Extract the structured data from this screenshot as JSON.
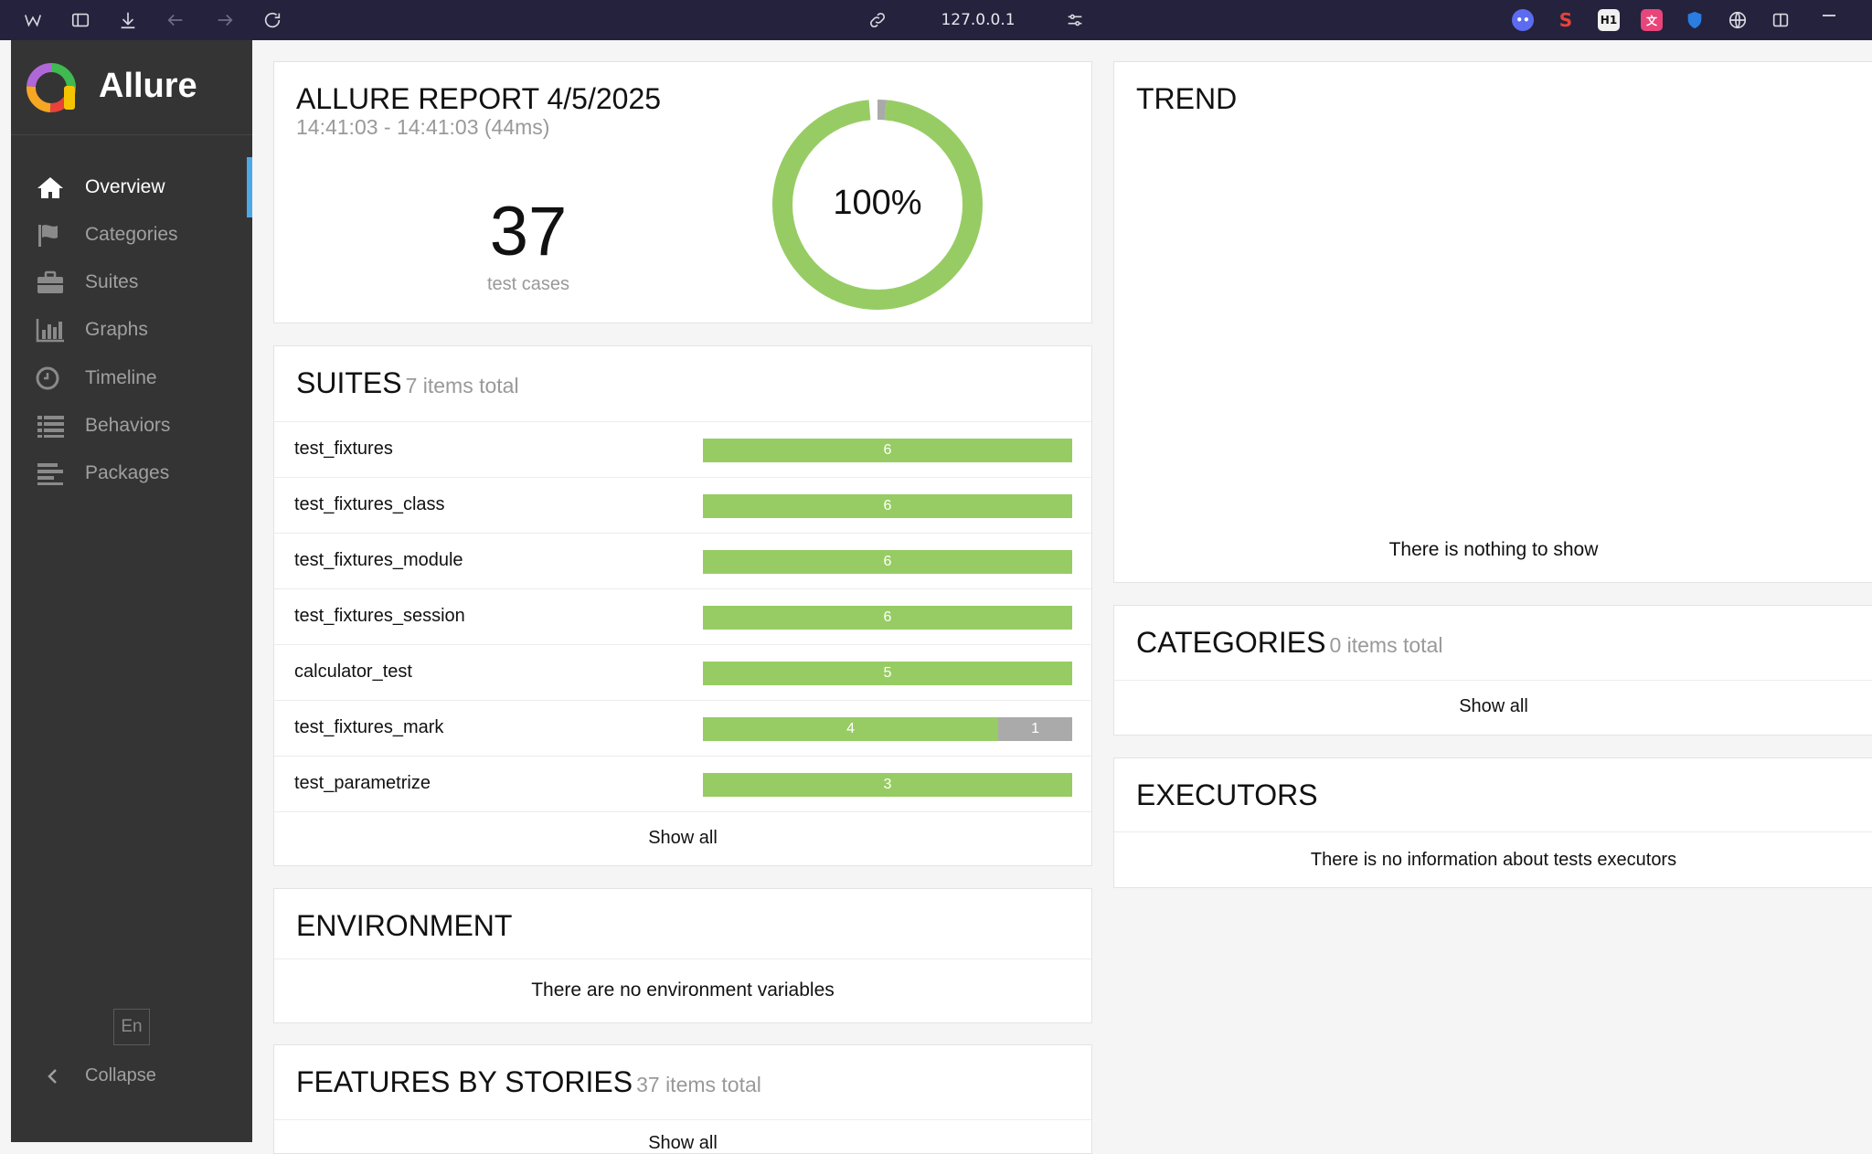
{
  "browser": {
    "url": "127.0.0.1"
  },
  "sidebar": {
    "brand": "Allure",
    "items": [
      {
        "label": "Overview",
        "icon": "home-icon"
      },
      {
        "label": "Categories",
        "icon": "flag-icon"
      },
      {
        "label": "Suites",
        "icon": "briefcase-icon"
      },
      {
        "label": "Graphs",
        "icon": "bar-chart-icon"
      },
      {
        "label": "Timeline",
        "icon": "clock-icon"
      },
      {
        "label": "Behaviors",
        "icon": "list-icon"
      },
      {
        "label": "Packages",
        "icon": "align-left-icon"
      }
    ],
    "language": "En",
    "collapse_label": "Collapse"
  },
  "summary": {
    "title": "ALLURE REPORT 4/5/2025",
    "time": "14:41:03 - 14:41:03 (44ms)",
    "test_count": "37",
    "test_count_label": "test cases",
    "percent_label": "100%",
    "passed_fraction": 0.973,
    "skipped_fraction": 0.027
  },
  "suites": {
    "title": "SUITES",
    "subtitle": "7 items total",
    "rows": [
      {
        "name": "test_fixtures",
        "passed": 6,
        "passed_label": "6",
        "skipped": 0,
        "skipped_label": ""
      },
      {
        "name": "test_fixtures_class",
        "passed": 6,
        "passed_label": "6",
        "skipped": 0,
        "skipped_label": ""
      },
      {
        "name": "test_fixtures_module",
        "passed": 6,
        "passed_label": "6",
        "skipped": 0,
        "skipped_label": ""
      },
      {
        "name": "test_fixtures_session",
        "passed": 6,
        "passed_label": "6",
        "skipped": 0,
        "skipped_label": ""
      },
      {
        "name": "calculator_test",
        "passed": 5,
        "passed_label": "5",
        "skipped": 0,
        "skipped_label": ""
      },
      {
        "name": "test_fixtures_mark",
        "passed": 4,
        "passed_label": "4",
        "skipped": 1,
        "skipped_label": "1"
      },
      {
        "name": "test_parametrize",
        "passed": 3,
        "passed_label": "3",
        "skipped": 0,
        "skipped_label": ""
      }
    ],
    "show_all": "Show all"
  },
  "environment": {
    "title": "ENVIRONMENT",
    "empty": "There are no environment variables"
  },
  "features": {
    "title": "FEATURES BY STORIES",
    "subtitle": "37 items total",
    "show_all": "Show all"
  },
  "trend": {
    "title": "TREND",
    "empty": "There is nothing to show"
  },
  "categories": {
    "title": "CATEGORIES",
    "subtitle": "0 items total",
    "show_all": "Show all"
  },
  "executors": {
    "title": "EXECUTORS",
    "empty": "There is no information about tests executors"
  },
  "colors": {
    "passed": "#97cc64",
    "skipped": "#aaaaaa",
    "accent": "#4fa8e6",
    "sidebar": "#343434"
  }
}
